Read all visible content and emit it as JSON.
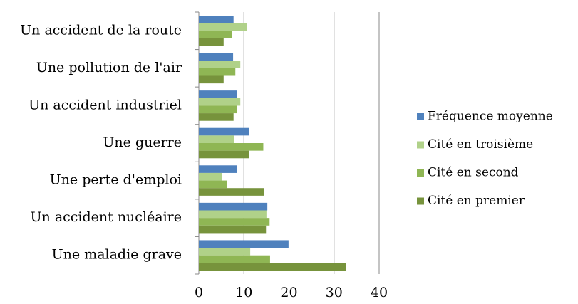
{
  "chart_data": {
    "type": "bar",
    "orientation": "horizontal",
    "categories": [
      "Un accident de la route",
      "Une pollution de l'air",
      "Un accident industriel",
      "Une guerre",
      "Une perte d'emploi",
      "Un accident nucléaire",
      "Une maladie grave"
    ],
    "series": [
      {
        "name": "Fréquence moyenne",
        "color": "#4f81bd",
        "values": [
          7.7,
          7.6,
          8.4,
          11.1,
          8.5,
          15.2,
          19.9
        ]
      },
      {
        "name": "Cité en troisième",
        "color": "#b0d189",
        "values": [
          10.6,
          9.2,
          9.2,
          7.9,
          5.1,
          15.0,
          11.4
        ]
      },
      {
        "name": "Cité en second",
        "color": "#8fb654",
        "values": [
          7.4,
          8.1,
          8.5,
          14.3,
          6.3,
          15.7,
          15.8
        ]
      },
      {
        "name": "Cité en premier",
        "color": "#77933c",
        "values": [
          5.5,
          5.5,
          7.7,
          11.1,
          14.4,
          14.9,
          32.6
        ]
      }
    ],
    "xlim": [
      0,
      40
    ],
    "xticks": [
      0,
      10,
      20,
      30,
      40
    ],
    "grid": true,
    "legend": "right"
  }
}
